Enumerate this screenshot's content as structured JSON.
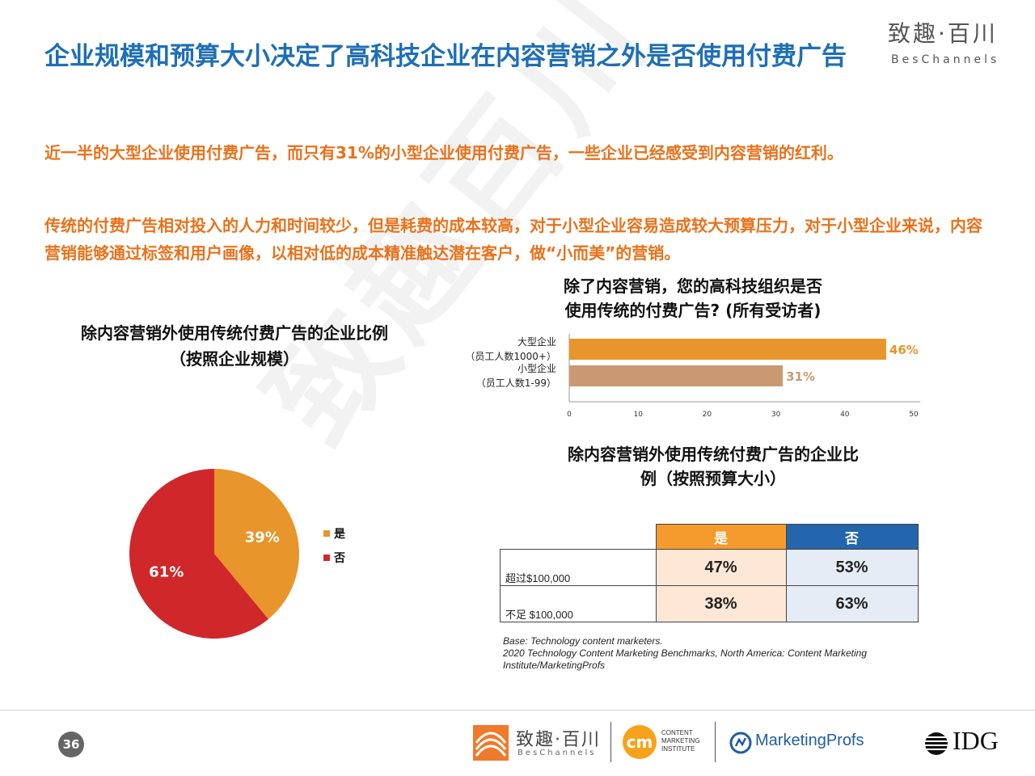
{
  "header": {
    "title": "企业规模和预算大小决定了高科技企业在内容营销之外是否使用付费广告",
    "brand_cn": "致趣·百川",
    "brand_en": "BesChannels"
  },
  "paragraphs": [
    "近一半的大型企业使用付费广告，而只有31%的小型企业使用付费广告，一些企业已经感受到内容营销的红利。",
    "传统的付费广告相对投入的人力和时间较少，但是耗费的成本较高，对于小型企业容易造成较大预算压力，对于小型企业来说，内容营销能够通过标签和用户画像，以相对低的成本精准触达潜在客户，做“小而美”的营销。"
  ],
  "watermark": "致趣百川",
  "chart_data": [
    {
      "type": "pie",
      "title": "除内容营销外使用传统付费广告的企业比例",
      "subtitle": "（按照企业规模）",
      "labels": [
        "是",
        "否"
      ],
      "values": [
        39,
        61
      ],
      "value_labels": [
        "39%",
        "61%"
      ],
      "colors": [
        "#e8952b",
        "#d0282a"
      ],
      "legend": "right"
    },
    {
      "type": "bar",
      "orientation": "horizontal",
      "title_line1": "除了内容营销，您的高科技组织是否",
      "title_line2": "使用传统的付费广告? (所有受访者)",
      "categories": [
        {
          "line1": "大型企业",
          "line2": "（员工人数1000+）"
        },
        {
          "line1": "小型企业",
          "line2": "（员工人数1-99）"
        }
      ],
      "values": [
        46,
        31
      ],
      "value_labels": [
        "46%",
        "31%"
      ],
      "colors": [
        "#e8952b",
        "#c99a72"
      ],
      "label_colors": [
        "#e8952b",
        "#c99a72"
      ],
      "xlim": [
        0,
        50
      ],
      "xticks": [
        0,
        10,
        20,
        30,
        40,
        50
      ]
    },
    {
      "type": "table",
      "title_line1": "除内容营销外使用传统付费广告的企业比",
      "title_line2": "例（按照预算大小）",
      "columns": [
        "是",
        "否"
      ],
      "column_colors": [
        "#f59a2c",
        "#2366ad"
      ],
      "cell_colors": [
        "#fde8d6",
        "#e6ecf6"
      ],
      "rows": [
        {
          "label": "超过$100,000",
          "values": [
            "47%",
            "53%"
          ]
        },
        {
          "label": "不足 $100,000",
          "values": [
            "38%",
            "63%"
          ]
        }
      ]
    }
  ],
  "source": {
    "line1": "Base: Technology content marketers.",
    "line2": "2020 Technology Content Marketing Benchmarks, North America: Content Marketing Institute/MarketingProfs"
  },
  "footer": {
    "page_number": "36",
    "logo1_cn": "致趣·百川",
    "logo1_en": "BesChannels",
    "logo2_mark": "cm",
    "logo2_lines": [
      "CONTENT",
      "MARKETING",
      "INSTITUTE"
    ],
    "logo3": "MarketingProfs",
    "logo4": "IDG"
  }
}
